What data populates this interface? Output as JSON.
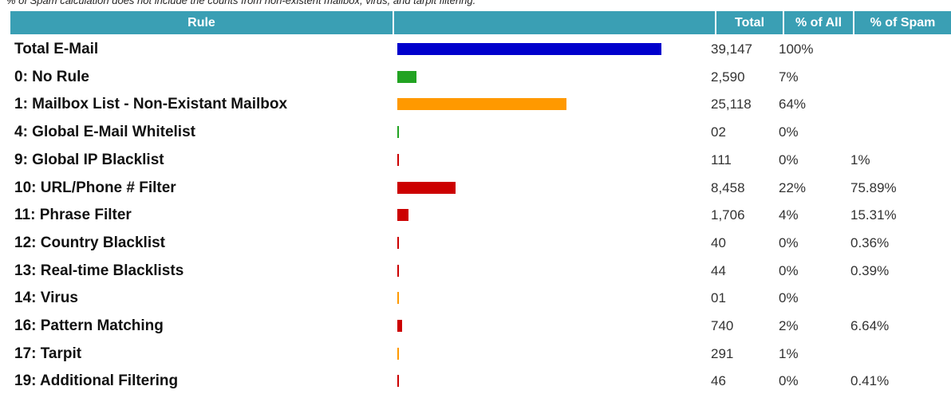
{
  "note": "% of Spam calculation does not include the counts from non-existent mailbox, virus, and tarpit filtering.",
  "headers": {
    "rule": "Rule",
    "bar": "",
    "total": "Total",
    "pct_all": "% of All",
    "pct_spam": "% of Spam"
  },
  "rows": [
    {
      "rule": "Total E-Mail",
      "total": "39,147",
      "pct_all": "100%",
      "pct_spam": "",
      "fraction": 1.0,
      "color": "#0000cc"
    },
    {
      "rule": "0: No Rule",
      "total": "2,590",
      "pct_all": "7%",
      "pct_spam": "",
      "fraction": 0.0725,
      "color": "#22a322"
    },
    {
      "rule": "1: Mailbox List - Non-Existant Mailbox",
      "total": "25,118",
      "pct_all": "64%",
      "pct_spam": "",
      "fraction": 0.6405,
      "color": "#ff9900"
    },
    {
      "rule": "4: Global E-Mail Whitelist",
      "total": "02",
      "pct_all": "0%",
      "pct_spam": "",
      "fraction": 0.004,
      "color": "#22a322"
    },
    {
      "rule": "9: Global IP Blacklist",
      "total": "111",
      "pct_all": "0%",
      "pct_spam": "1%",
      "fraction": 0.004,
      "color": "#cc0000"
    },
    {
      "rule": "10: URL/Phone # Filter",
      "total": "8,458",
      "pct_all": "22%",
      "pct_spam": "75.89%",
      "fraction": 0.2205,
      "color": "#cc0000"
    },
    {
      "rule": "11: Phrase Filter",
      "total": "1,706",
      "pct_all": "4%",
      "pct_spam": "15.31%",
      "fraction": 0.042,
      "color": "#cc0000"
    },
    {
      "rule": "12: Country Blacklist",
      "total": "40",
      "pct_all": "0%",
      "pct_spam": "0.36%",
      "fraction": 0.004,
      "color": "#cc0000"
    },
    {
      "rule": "13: Real-time Blacklists",
      "total": "44",
      "pct_all": "0%",
      "pct_spam": "0.39%",
      "fraction": 0.004,
      "color": "#cc0000"
    },
    {
      "rule": "14: Virus",
      "total": "01",
      "pct_all": "0%",
      "pct_spam": "",
      "fraction": 0.004,
      "color": "#ff9900"
    },
    {
      "rule": "16: Pattern Matching",
      "total": "740",
      "pct_all": "2%",
      "pct_spam": "6.64%",
      "fraction": 0.018,
      "color": "#cc0000"
    },
    {
      "rule": "17: Tarpit",
      "total": "291",
      "pct_all": "1%",
      "pct_spam": "",
      "fraction": 0.007,
      "color": "#ff9900"
    },
    {
      "rule": "19: Additional Filtering",
      "total": "46",
      "pct_all": "0%",
      "pct_spam": "0.41%",
      "fraction": 0.004,
      "color": "#cc0000"
    }
  ]
}
